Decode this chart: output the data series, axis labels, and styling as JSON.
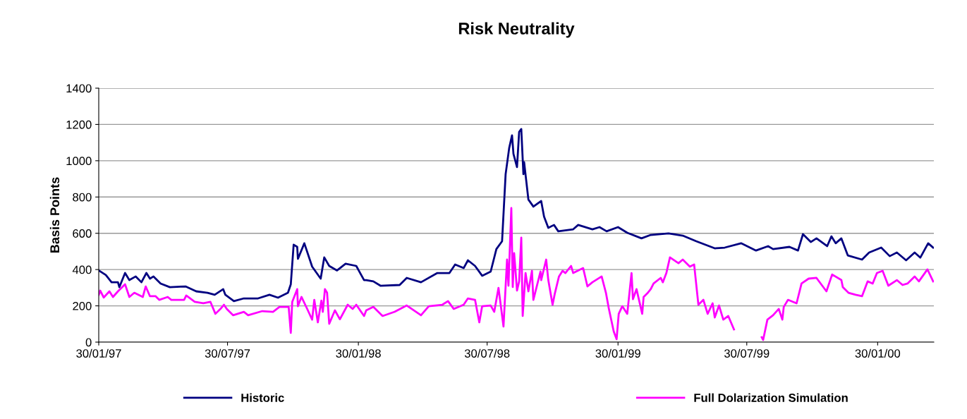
{
  "chart_data": {
    "type": "line",
    "title": "Risk Neutrality",
    "ylabel": "Basis Points",
    "ylim": [
      0,
      1400
    ],
    "yticks": [
      0,
      200,
      400,
      600,
      800,
      1000,
      1200,
      1400
    ],
    "xlim": [
      "1997-01-30",
      "2000-04-18"
    ],
    "xticks": [
      {
        "value": "1997-01-30",
        "label": "30/01/97"
      },
      {
        "value": "1997-07-30",
        "label": "30/07/97"
      },
      {
        "value": "1998-01-30",
        "label": "30/01/98"
      },
      {
        "value": "1998-07-30",
        "label": "30/07/98"
      },
      {
        "value": "1999-01-30",
        "label": "30/01/99"
      },
      {
        "value": "1999-07-30",
        "label": "30/07/99"
      },
      {
        "value": "2000-01-30",
        "label": "30/01/00"
      }
    ],
    "grid": "y",
    "legend": "bottom",
    "line_style": "solid",
    "series": [
      {
        "name": "Historic",
        "color": "#000080",
        "x": [
          "1997-01-30",
          "1997-02-09",
          "1997-02-17",
          "1997-02-26",
          "1997-02-28",
          "1997-03-08",
          "1997-03-14",
          "1997-03-23",
          "1997-03-31",
          "1997-04-07",
          "1997-04-12",
          "1997-04-17",
          "1997-04-27",
          "1997-05-10",
          "1997-06-01",
          "1997-06-16",
          "1997-07-02",
          "1997-07-12",
          "1997-07-24",
          "1997-07-27",
          "1997-08-08",
          "1997-08-22",
          "1997-09-11",
          "1997-09-27",
          "1997-10-09",
          "1997-10-23",
          "1997-10-27",
          "1997-10-31",
          "1997-11-05",
          "1997-11-06",
          "1997-11-15",
          "1997-11-26",
          "1997-12-08",
          "1997-12-13",
          "1997-12-20",
          "1997-12-31",
          "1998-01-12",
          "1998-01-27",
          "1998-02-07",
          "1998-02-10",
          "1998-02-20",
          "1998-03-02",
          "1998-03-29",
          "1998-04-08",
          "1998-04-28",
          "1998-05-21",
          "1998-06-07",
          "1998-06-15",
          "1998-06-27",
          "1998-07-03",
          "1998-07-13",
          "1998-07-23",
          "1998-08-04",
          "1998-08-12",
          "1998-08-20",
          "1998-08-25",
          "1998-08-30",
          "1998-09-03",
          "1998-09-05",
          "1998-09-10",
          "1998-09-13",
          "1998-09-16",
          "1998-09-19",
          "1998-09-20",
          "1998-09-26",
          "1998-10-03",
          "1998-10-14",
          "1998-10-18",
          "1998-10-24",
          "1998-11-01",
          "1998-11-07",
          "1998-11-28",
          "1998-12-05",
          "1998-12-25",
          "1999-01-04",
          "1999-01-14",
          "1999-01-30",
          "1999-02-12",
          "1999-03-04",
          "1999-03-17",
          "1999-04-11",
          "1999-05-01",
          "1999-05-20",
          "1999-06-15",
          "1999-06-29",
          "1999-07-22",
          "1999-08-12",
          "1999-08-29",
          "1999-09-05",
          "1999-09-28",
          "1999-10-10",
          "1999-10-17",
          "1999-10-28",
          "1999-11-05",
          "1999-11-20",
          "1999-11-26",
          "1999-12-02",
          "1999-12-10",
          "1999-12-19",
          "2000-01-08",
          "2000-01-18",
          "2000-02-04",
          "2000-02-16",
          "2000-02-26",
          "2000-03-10",
          "2000-03-22",
          "2000-03-30",
          "2000-04-10",
          "2000-04-17"
        ],
        "values": [
          395,
          370,
          330,
          330,
          303,
          381,
          342,
          362,
          330,
          381,
          350,
          362,
          323,
          303,
          307,
          280,
          272,
          261,
          292,
          261,
          226,
          241,
          241,
          261,
          245,
          272,
          319,
          537,
          525,
          459,
          545,
          416,
          350,
          467,
          420,
          395,
          432,
          420,
          342,
          342,
          335,
          311,
          315,
          354,
          330,
          381,
          381,
          428,
          408,
          451,
          420,
          366,
          389,
          513,
          556,
          926,
          1070,
          1140,
          1038,
          965,
          1159,
          1175,
          926,
          992,
          786,
          747,
          778,
          692,
          630,
          646,
          611,
          622,
          646,
          622,
          634,
          611,
          634,
          603,
          572,
          591,
          599,
          587,
          556,
          517,
          521,
          545,
          505,
          529,
          513,
          525,
          505,
          595,
          552,
          572,
          529,
          583,
          545,
          572,
          478,
          455,
          494,
          521,
          474,
          494,
          451,
          494,
          466,
          545,
          521
        ]
      },
      {
        "name": "Full Dolarization Simulation",
        "color": "#ff00ff",
        "x": [
          "1997-01-30",
          "1997-02-01",
          "1997-02-06",
          "1997-02-14",
          "1997-02-19",
          "1997-02-26",
          "1997-03-08",
          "1997-03-14",
          "1997-03-21",
          "1997-04-02",
          "1997-04-06",
          "1997-04-12",
          "1997-04-20",
          "1997-04-25",
          "1997-05-07",
          "1997-05-12",
          "1997-05-30",
          "1997-06-02",
          "1997-06-14",
          "1997-06-26",
          "1997-07-06",
          "1997-07-13",
          "1997-07-21",
          "1997-07-25",
          "1997-07-29",
          "1997-08-07",
          "1997-08-22",
          "1997-08-28",
          "1997-09-17",
          "1997-10-02",
          "1997-10-11",
          "1997-10-24",
          "1997-10-27",
          "1997-10-29",
          "1997-11-05",
          "1997-11-06",
          "1997-11-11",
          "1997-11-20",
          "1997-11-26",
          "1997-11-29",
          "1997-12-04",
          "1997-12-09",
          "1997-12-11",
          "1997-12-14",
          "1997-12-17",
          "1997-12-20",
          "1997-12-28",
          "1998-01-04",
          "1998-01-15",
          "1998-01-22",
          "1998-01-27",
          "1998-02-07",
          "1998-02-10",
          "1998-02-20",
          "1998-03-05",
          "1998-03-22",
          "1998-04-08",
          "1998-04-28",
          "1998-05-09",
          "1998-05-28",
          "1998-06-05",
          "1998-06-13",
          "1998-06-27",
          "1998-07-03",
          "1998-07-13",
          "1998-07-19",
          "1998-07-23",
          "1998-08-04",
          "1998-08-09",
          "1998-08-15",
          "1998-08-22",
          "1998-08-27",
          "1998-08-29",
          "1998-09-02",
          "1998-09-04",
          "1998-09-06",
          "1998-09-10",
          "1998-09-13",
          "1998-09-16",
          "1998-09-18",
          "1998-09-22",
          "1998-09-26",
          "1998-10-01",
          "1998-10-03",
          "1998-10-13",
          "1998-10-14",
          "1998-10-21",
          "1998-10-24",
          "1998-10-30",
          "1998-11-02",
          "1998-11-08",
          "1998-11-13",
          "1998-11-17",
          "1998-11-25",
          "1998-11-28",
          "1998-12-12",
          "1998-12-18",
          "1998-12-25",
          "1999-01-07",
          "1999-01-13",
          "1999-01-17",
          "1999-01-24",
          "1999-01-28",
          "1999-01-31",
          "1999-02-05",
          "1999-02-12",
          "1999-02-18",
          "1999-02-20",
          "1999-02-25",
          "1999-03-05",
          "1999-03-07",
          "1999-03-12",
          "1999-03-17",
          "1999-03-21",
          "1999-03-31",
          "1999-04-03",
          "1999-04-08",
          "1999-04-13",
          "1999-04-25",
          "1999-05-01",
          "1999-05-11",
          "1999-05-17",
          "1999-05-23",
          "1999-05-30",
          "1999-06-05",
          "1999-06-12",
          "1999-06-15",
          "1999-06-21",
          "1999-06-27",
          "1999-07-04",
          "1999-07-12",
          "1999-07-25",
          "1999-08-20",
          "1999-08-22",
          "1999-08-28",
          "1999-09-05",
          "1999-09-13",
          "1999-09-18",
          "1999-09-20",
          "1999-09-26",
          "1999-10-08",
          "1999-10-15",
          "1999-10-25",
          "1999-11-05",
          "1999-11-19",
          "1999-11-27",
          "1999-12-10",
          "1999-12-12",
          "1999-12-20",
          "1999-12-30",
          "2000-01-08",
          "2000-01-16",
          "2000-01-23",
          "2000-01-29",
          "2000-02-06",
          "2000-02-14",
          "2000-02-26",
          "2000-03-05",
          "2000-03-12",
          "2000-03-22",
          "2000-03-28",
          "2000-04-09",
          "2000-04-17"
        ],
        "values": [
          261,
          284,
          246,
          280,
          249,
          280,
          319,
          249,
          272,
          249,
          307,
          253,
          253,
          233,
          249,
          233,
          233,
          257,
          222,
          214,
          222,
          156,
          187,
          206,
          183,
          148,
          167,
          148,
          171,
          167,
          194,
          194,
          51,
          222,
          292,
          198,
          249,
          175,
          124,
          233,
          109,
          229,
          167,
          292,
          272,
          101,
          175,
          126,
          206,
          183,
          206,
          144,
          175,
          194,
          144,
          167,
          202,
          148,
          198,
          206,
          226,
          183,
          206,
          241,
          233,
          109,
          198,
          202,
          167,
          299,
          86,
          455,
          311,
          739,
          304,
          490,
          284,
          335,
          576,
          144,
          381,
          280,
          393,
          233,
          389,
          342,
          455,
          342,
          206,
          265,
          362,
          393,
          381,
          420,
          381,
          408,
          307,
          330,
          362,
          272,
          187,
          58,
          16,
          156,
          198,
          156,
          381,
          237,
          292,
          156,
          249,
          268,
          292,
          323,
          354,
          330,
          381,
          467,
          435,
          455,
          416,
          428,
          206,
          233,
          156,
          214,
          136,
          202,
          124,
          144,
          70,
          null,
          27,
          12,
          124,
          148,
          183,
          124,
          194,
          233,
          214,
          323,
          350,
          354,
          280,
          373,
          342,
          303,
          272,
          261,
          253,
          335,
          323,
          381,
          393,
          311,
          342,
          315,
          323,
          362,
          335,
          401,
          335
        ]
      }
    ]
  }
}
